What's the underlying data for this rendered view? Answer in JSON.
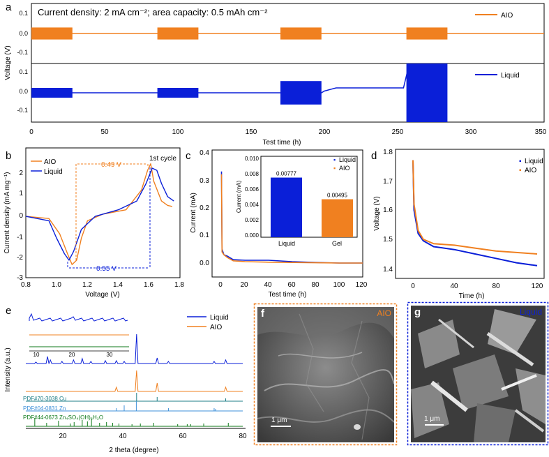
{
  "colors": {
    "aio": "#f08020",
    "liquid": "#0a1fd8",
    "ref_cu": "#1c7d87",
    "ref_zn": "#3d8fd8",
    "ref_zhs": "#0f7a1a",
    "axis": "#000000"
  },
  "panels": {
    "a": {
      "label": "a",
      "title": "Current density: 2 mA cm⁻²; area capacity: 0.5 mAh cm⁻²",
      "ylabel": "Voltage (V)",
      "xlabel": "Test time (h)",
      "xticks": [
        "0",
        "50",
        "100",
        "150",
        "200",
        "250",
        "300",
        "350"
      ],
      "top_yticks": [
        "0.1",
        "0.0",
        "-0.1"
      ],
      "bottom_yticks": [
        "0.1",
        "0.0",
        "-0.1"
      ],
      "legend_top": "AIO",
      "legend_bottom": "Liquid"
    },
    "b": {
      "label": "b",
      "xlabel": "Voltage (V)",
      "ylabel": "Current density (mA mg⁻¹)",
      "xticks": [
        "0.8",
        "1.0",
        "1.2",
        "1.4",
        "1.6",
        "1.8"
      ],
      "yticks": [
        "2",
        "1",
        "0",
        "-1",
        "-2",
        "-3"
      ],
      "legend": [
        "AIO",
        "Liquid"
      ],
      "annot_top": "0.49 V",
      "annot_bottom": "0.55 V",
      "annot_cycle": "1st cycle"
    },
    "c": {
      "label": "c",
      "xlabel": "Test time (h)",
      "ylabel": "Current (mA)",
      "xticks": [
        "0",
        "20",
        "40",
        "60",
        "80",
        "100",
        "120"
      ],
      "yticks": [
        "0.4",
        "0.3",
        "0.2",
        "0.1",
        "0.0"
      ],
      "legend": [
        "Liquid",
        "AIO"
      ],
      "inset": {
        "ylabel": "Current (mA)",
        "yticks": [
          "0.010",
          "0.008",
          "0.006",
          "0.004",
          "0.002",
          "0.000"
        ],
        "categories": [
          "Liquid",
          "Gel"
        ],
        "values": [
          0.00777,
          0.00495
        ],
        "value_labels": [
          "0.00777",
          "0.00495"
        ]
      }
    },
    "d": {
      "label": "d",
      "xlabel": "Time (h)",
      "ylabel": "Voltage (V)",
      "xticks": [
        "0",
        "40",
        "80",
        "120"
      ],
      "yticks": [
        "1.8",
        "1.7",
        "1.6",
        "1.5",
        "1.4"
      ],
      "legend": [
        "Liquid",
        "AIO"
      ]
    },
    "e": {
      "label": "e",
      "xlabel": "2 theta (degree)",
      "ylabel": "Intensity (a.u.)",
      "xticks": [
        "20",
        "40",
        "60",
        "80"
      ],
      "inset_xticks": [
        "10",
        "20",
        "30"
      ],
      "legend": [
        "Liquid",
        "AIO"
      ],
      "ref_cu": "PDF#70-3038 Cu",
      "ref_zn": "PDF#04-0831 Zn",
      "ref_zhs": "PDF#44-0673 Zn₄SO₄(OH)₆H₂O"
    },
    "f": {
      "label": "f",
      "tag": "AIO",
      "scale": "1 μm"
    },
    "g": {
      "label": "g",
      "tag": "Liquid",
      "scale": "1 μm"
    }
  },
  "chart_data": [
    {
      "type": "line",
      "title": "Current density: 2 mA cm⁻²; area capacity: 0.5 mAh cm⁻²",
      "xlabel": "Test time (h)",
      "ylabel": "Voltage (V)",
      "xlim": [
        0,
        350
      ],
      "ylim": [
        -0.15,
        0.15
      ],
      "series": [
        {
          "name": "AIO",
          "cycling_windows_h": [
            [
              0,
              28
            ],
            [
              86,
              114
            ],
            [
              170,
              198
            ],
            [
              256,
              284
            ]
          ],
          "amplitude_V": 0.03,
          "rest_voltage_V": 0.0
        },
        {
          "name": "Liquid",
          "cycling_windows_h": [
            [
              0,
              28
            ],
            [
              86,
              114
            ],
            [
              170,
              198
            ],
            [
              256,
              284
            ]
          ],
          "amplitude_V": [
            0.025,
            0.025,
            0.06,
            0.22
          ],
          "rest_drift_V": 0.02,
          "short_circuit_h": 255
        }
      ]
    },
    {
      "type": "line",
      "xlabel": "Voltage (V)",
      "ylabel": "Current density (mA mg⁻¹)",
      "xlim": [
        0.8,
        1.8
      ],
      "ylim": [
        -3,
        2.5
      ],
      "series": [
        {
          "name": "AIO",
          "x": [
            0.8,
            0.95,
            1.02,
            1.07,
            1.1,
            1.13,
            1.16,
            1.2,
            1.3,
            1.45,
            1.55,
            1.59,
            1.61,
            1.63,
            1.68,
            1.72,
            1.75
          ],
          "y": [
            -0.2,
            -0.3,
            -1.0,
            -1.9,
            -2.4,
            -2.2,
            -1.2,
            -0.4,
            -0.1,
            0.1,
            1.0,
            1.9,
            2.2,
            1.4,
            0.5,
            0.3,
            0.25
          ]
        },
        {
          "name": "Liquid",
          "x": [
            0.8,
            0.95,
            1.0,
            1.05,
            1.08,
            1.11,
            1.16,
            1.25,
            1.4,
            1.52,
            1.58,
            1.62,
            1.65,
            1.68,
            1.72,
            1.76
          ],
          "y": [
            -0.2,
            -0.4,
            -1.2,
            -1.9,
            -2.2,
            -1.8,
            -0.8,
            -0.2,
            0.1,
            0.5,
            1.3,
            2.0,
            1.9,
            1.3,
            0.7,
            0.5
          ]
        }
      ],
      "annotations": [
        "0.49 V",
        "0.55 V",
        "1st cycle"
      ]
    },
    {
      "type": "line",
      "xlabel": "Test time (h)",
      "ylabel": "Current (mA)",
      "xlim": [
        -5,
        120
      ],
      "ylim": [
        -0.03,
        0.4
      ],
      "series": [
        {
          "name": "Liquid",
          "x": [
            0,
            0.5,
            2,
            5,
            10,
            20,
            40,
            60,
            80,
            100,
            120
          ],
          "y": [
            0.33,
            0.05,
            0.03,
            0.025,
            0.012,
            0.01,
            0.01,
            0.005,
            0.002,
            0.0,
            0.0
          ]
        },
        {
          "name": "AIO",
          "x": [
            0,
            0.5,
            2,
            5,
            10,
            20,
            40,
            60,
            80,
            100,
            120
          ],
          "y": [
            0.32,
            0.04,
            0.03,
            0.02,
            0.008,
            0.005,
            0.003,
            0.002,
            0.001,
            0.0,
            0.0
          ]
        }
      ]
    },
    {
      "type": "bar",
      "ylabel": "Current (mA)",
      "categories": [
        "Liquid",
        "Gel"
      ],
      "values": [
        0.00777,
        0.00495
      ],
      "ylim": [
        0,
        0.01
      ]
    },
    {
      "type": "line",
      "xlabel": "Time (h)",
      "ylabel": "Voltage (V)",
      "xlim": [
        -10,
        125
      ],
      "ylim": [
        1.38,
        1.8
      ],
      "series": [
        {
          "name": "Liquid",
          "x": [
            0,
            1,
            5,
            10,
            20,
            40,
            60,
            80,
            100,
            120
          ],
          "y": [
            1.77,
            1.6,
            1.52,
            1.495,
            1.475,
            1.465,
            1.45,
            1.435,
            1.42,
            1.41
          ]
        },
        {
          "name": "AIO",
          "x": [
            0,
            1,
            5,
            10,
            20,
            40,
            60,
            80,
            100,
            120
          ],
          "y": [
            1.77,
            1.62,
            1.53,
            1.5,
            1.485,
            1.48,
            1.47,
            1.46,
            1.455,
            1.45
          ]
        }
      ]
    },
    {
      "type": "line",
      "xlabel": "2 theta (degree)",
      "ylabel": "Intensity (a.u.)",
      "xlim": [
        5,
        80
      ],
      "series": [
        {
          "name": "Liquid",
          "peaks_2theta": [
            8.5,
            12.5,
            13.5,
            17.5,
            21.5,
            24.5,
            27.5,
            32.5,
            36.3,
            39.0,
            43.3,
            50.4,
            54.3,
            70.1,
            74.1
          ]
        },
        {
          "name": "AIO",
          "peaks_2theta": [
            36.3,
            43.3,
            50.4,
            74.1
          ]
        },
        {
          "name": "PDF#70-3038 Cu",
          "peaks_2theta": [
            43.3,
            50.4,
            74.1
          ]
        },
        {
          "name": "PDF#04-0831 Zn",
          "peaks_2theta": [
            36.3,
            39.0,
            43.2,
            54.3,
            70.1,
            70.6
          ]
        },
        {
          "name": "PDF#44-0673 Zn₄SO₄(OH)₆H₂O",
          "peaks_2theta": [
            8.1,
            12.2,
            16.3,
            20.4,
            21.7,
            24.5,
            26.3,
            27.7,
            30.5,
            32.9,
            35.0,
            37.2,
            41.7,
            44.6,
            49.2,
            57.5,
            60.8,
            62.0,
            66.5,
            75.0
          ]
        }
      ]
    }
  ]
}
